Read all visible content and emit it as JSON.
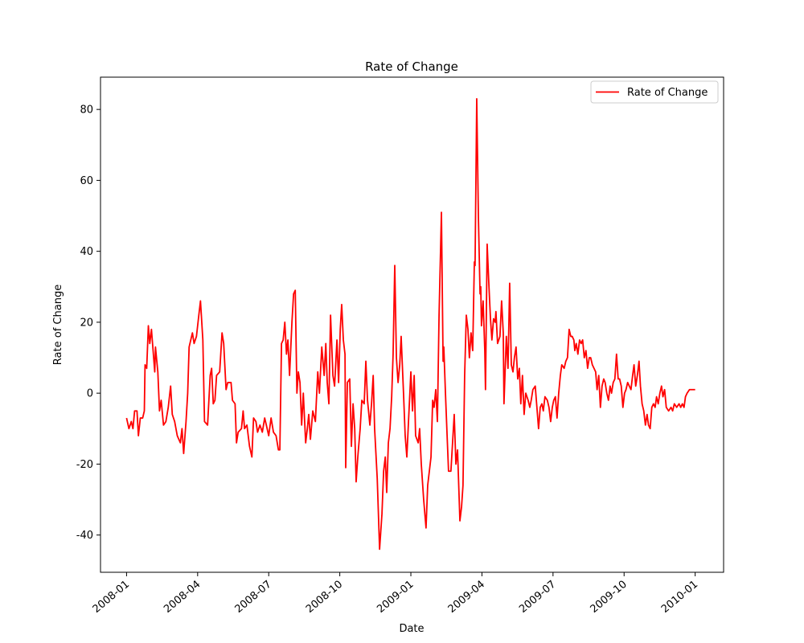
{
  "chart_data": {
    "type": "line",
    "title": "Rate of Change",
    "x_label": "Date",
    "y_label": "Rate of Change",
    "x": [
      0.0,
      0.1,
      0.2,
      0.27,
      0.34,
      0.44,
      0.5,
      0.58,
      0.68,
      0.75,
      0.78,
      0.85,
      0.92,
      0.98,
      1.05,
      1.12,
      1.19,
      1.22,
      1.32,
      1.39,
      1.46,
      1.56,
      1.66,
      1.76,
      1.86,
      1.93,
      2.03,
      2.14,
      2.27,
      2.34,
      2.41,
      2.51,
      2.58,
      2.64,
      2.78,
      2.85,
      2.95,
      3.05,
      3.12,
      3.22,
      3.29,
      3.42,
      3.53,
      3.59,
      3.66,
      3.73,
      3.8,
      3.93,
      4.03,
      4.1,
      4.2,
      4.27,
      4.41,
      4.47,
      4.58,
      4.64,
      4.71,
      4.85,
      4.92,
      4.98,
      5.08,
      5.19,
      5.29,
      5.36,
      5.46,
      5.53,
      5.63,
      5.73,
      5.83,
      5.9,
      6.0,
      6.1,
      6.2,
      6.31,
      6.41,
      6.47,
      6.54,
      6.61,
      6.68,
      6.75,
      6.81,
      6.88,
      6.98,
      7.05,
      7.12,
      7.19,
      7.25,
      7.32,
      7.39,
      7.46,
      7.56,
      7.63,
      7.69,
      7.76,
      7.86,
      7.97,
      8.07,
      8.14,
      8.24,
      8.34,
      8.41,
      8.47,
      8.54,
      8.61,
      8.71,
      8.78,
      8.88,
      8.95,
      9.02,
      9.08,
      9.15,
      9.22,
      9.25,
      9.32,
      9.42,
      9.49,
      9.56,
      9.63,
      9.69,
      9.76,
      9.86,
      9.93,
      10.03,
      10.1,
      10.17,
      10.27,
      10.34,
      10.41,
      10.47,
      10.58,
      10.68,
      10.78,
      10.85,
      10.92,
      10.98,
      11.05,
      11.12,
      11.19,
      11.25,
      11.32,
      11.39,
      11.46,
      11.53,
      11.59,
      11.69,
      11.76,
      11.83,
      11.9,
      12.0,
      12.07,
      12.14,
      12.2,
      12.31,
      12.37,
      12.44,
      12.54,
      12.64,
      12.71,
      12.78,
      12.85,
      12.92,
      12.98,
      13.05,
      13.12,
      13.19,
      13.29,
      13.36,
      13.39,
      13.46,
      13.53,
      13.59,
      13.69,
      13.76,
      13.83,
      13.9,
      13.97,
      14.07,
      14.14,
      14.2,
      14.27,
      14.34,
      14.41,
      14.47,
      14.54,
      14.61,
      14.68,
      14.71,
      14.78,
      14.85,
      14.92,
      14.95,
      14.98,
      15.05,
      15.12,
      15.15,
      15.22,
      15.29,
      15.36,
      15.42,
      15.49,
      15.56,
      15.59,
      15.66,
      15.76,
      15.83,
      15.9,
      15.93,
      16.03,
      16.1,
      16.17,
      16.24,
      16.31,
      16.37,
      16.44,
      16.51,
      16.58,
      16.64,
      16.71,
      16.78,
      16.85,
      16.95,
      17.02,
      17.08,
      17.15,
      17.25,
      17.32,
      17.39,
      17.46,
      17.53,
      17.59,
      17.66,
      17.76,
      17.83,
      17.9,
      17.97,
      18.03,
      18.1,
      18.17,
      18.24,
      18.31,
      18.37,
      18.47,
      18.54,
      18.61,
      18.68,
      18.75,
      18.81,
      18.88,
      18.92,
      18.98,
      19.05,
      19.12,
      19.19,
      19.25,
      19.32,
      19.39,
      19.46,
      19.53,
      19.59,
      19.66,
      19.73,
      19.8,
      19.86,
      19.93,
      20.0,
      20.07,
      20.14,
      20.2,
      20.27,
      20.34,
      20.41,
      20.47,
      20.54,
      20.61,
      20.68,
      20.75,
      20.81,
      20.88,
      20.95,
      21.02,
      21.08,
      21.15,
      21.22,
      21.29,
      21.36,
      21.42,
      21.49,
      21.56,
      21.63,
      21.69,
      21.76,
      21.83,
      21.9,
      21.97,
      22.03,
      22.1,
      22.17,
      22.24,
      22.31,
      22.37,
      22.44,
      22.51,
      22.58,
      22.64,
      22.71,
      22.78,
      22.88,
      22.98,
      23.05,
      23.12,
      23.22,
      23.32,
      23.39,
      23.46,
      23.53,
      23.59,
      23.66,
      23.76,
      23.86,
      23.93,
      24.0
    ],
    "series": [
      {
        "name": "Rate of Change",
        "color": "#ff0000",
        "values": [
          -7,
          -10,
          -8,
          -10,
          -5,
          -5,
          -12,
          -7,
          -7,
          -5,
          8,
          7,
          19,
          14,
          18,
          12,
          6,
          13,
          6,
          -5,
          -2,
          -9,
          -8,
          -4,
          2,
          -6,
          -8,
          -12,
          -14,
          -10,
          -17,
          -8,
          0,
          13,
          17,
          14,
          16,
          22,
          26,
          15,
          -8,
          -9,
          5,
          7,
          -3,
          -2,
          5,
          6,
          17,
          14,
          1,
          3,
          3,
          -2,
          -3,
          -14,
          -11,
          -10,
          -5,
          -10,
          -9,
          -15,
          -18,
          -7,
          -8,
          -11,
          -9,
          -11,
          -7,
          -9,
          -12,
          -7,
          -11,
          -12,
          -16,
          -16,
          14,
          15,
          20,
          11,
          15,
          5,
          20,
          28,
          29,
          0,
          6,
          3,
          -9,
          0,
          -14,
          -10,
          -6,
          -13,
          -5,
          -8,
          6,
          0,
          13,
          5,
          14,
          3,
          -3,
          22,
          5,
          2,
          15,
          3,
          18,
          25,
          15,
          11,
          -21,
          3,
          4,
          -15,
          -3,
          -10,
          -25,
          -18,
          -10,
          -2,
          -3,
          9,
          -2,
          -9,
          -3,
          5,
          -10,
          -24,
          -44,
          -34,
          -22,
          -18,
          -28,
          -14,
          -10,
          -1,
          11,
          36,
          10,
          3,
          8,
          16,
          0,
          -12,
          -18,
          -8,
          6,
          -5,
          5,
          -12,
          -14,
          -10,
          -20,
          -30,
          -38,
          -26,
          -22,
          -18,
          -2,
          -4,
          1,
          -8,
          22,
          51,
          9,
          13,
          0,
          -12,
          -22,
          -22,
          -14,
          -6,
          -20,
          -16,
          -36,
          -32,
          -26,
          5,
          22,
          18,
          10,
          17,
          12,
          37,
          36,
          83,
          50,
          28,
          30,
          19,
          26,
          12,
          1,
          42,
          31,
          21,
          15,
          21,
          20,
          23,
          14,
          16,
          26,
          17,
          -3,
          16,
          7,
          31,
          8,
          6,
          10,
          13,
          4,
          7,
          -3,
          5,
          -6,
          0,
          -2,
          -4,
          -2,
          1,
          2,
          -4,
          -10,
          -4,
          -3,
          -5,
          -1,
          -2,
          -4,
          -8,
          -4,
          -2,
          -1,
          -7,
          0,
          5,
          8,
          7,
          9,
          10,
          18,
          16,
          16,
          15,
          12,
          14,
          11,
          15,
          14,
          15,
          10,
          12,
          7,
          10,
          10,
          8,
          7,
          6,
          1,
          5,
          -4,
          2,
          4,
          3,
          0,
          -2,
          2,
          0,
          3,
          4,
          11,
          4,
          4,
          2,
          -4,
          0,
          1,
          3,
          2,
          1,
          5,
          8,
          2,
          5,
          9,
          2,
          -3,
          -5,
          -9,
          -6,
          -9,
          -10,
          -4,
          -3,
          -4,
          -1,
          -3,
          0,
          2,
          -1,
          1,
          -4,
          -5,
          -4,
          -5,
          -3,
          -4,
          -3,
          -4,
          -3,
          -4,
          -1,
          0,
          1,
          1,
          1,
          1
        ]
      }
    ],
    "xlim": [
      -1.1,
      25.2
    ],
    "xticks": [
      {
        "value": 0,
        "label": "2008-01"
      },
      {
        "value": 3,
        "label": "2008-04"
      },
      {
        "value": 6,
        "label": "2008-07"
      },
      {
        "value": 9,
        "label": "2008-10"
      },
      {
        "value": 12,
        "label": "2009-01"
      },
      {
        "value": 15,
        "label": "2009-04"
      },
      {
        "value": 18,
        "label": "2009-07"
      },
      {
        "value": 21,
        "label": "2009-10"
      },
      {
        "value": 24,
        "label": "2010-01"
      }
    ],
    "ylim": [
      -50.5,
      89.1
    ],
    "yticks": [
      -40,
      -20,
      0,
      20,
      40,
      60,
      80
    ],
    "legend": "upper right"
  }
}
